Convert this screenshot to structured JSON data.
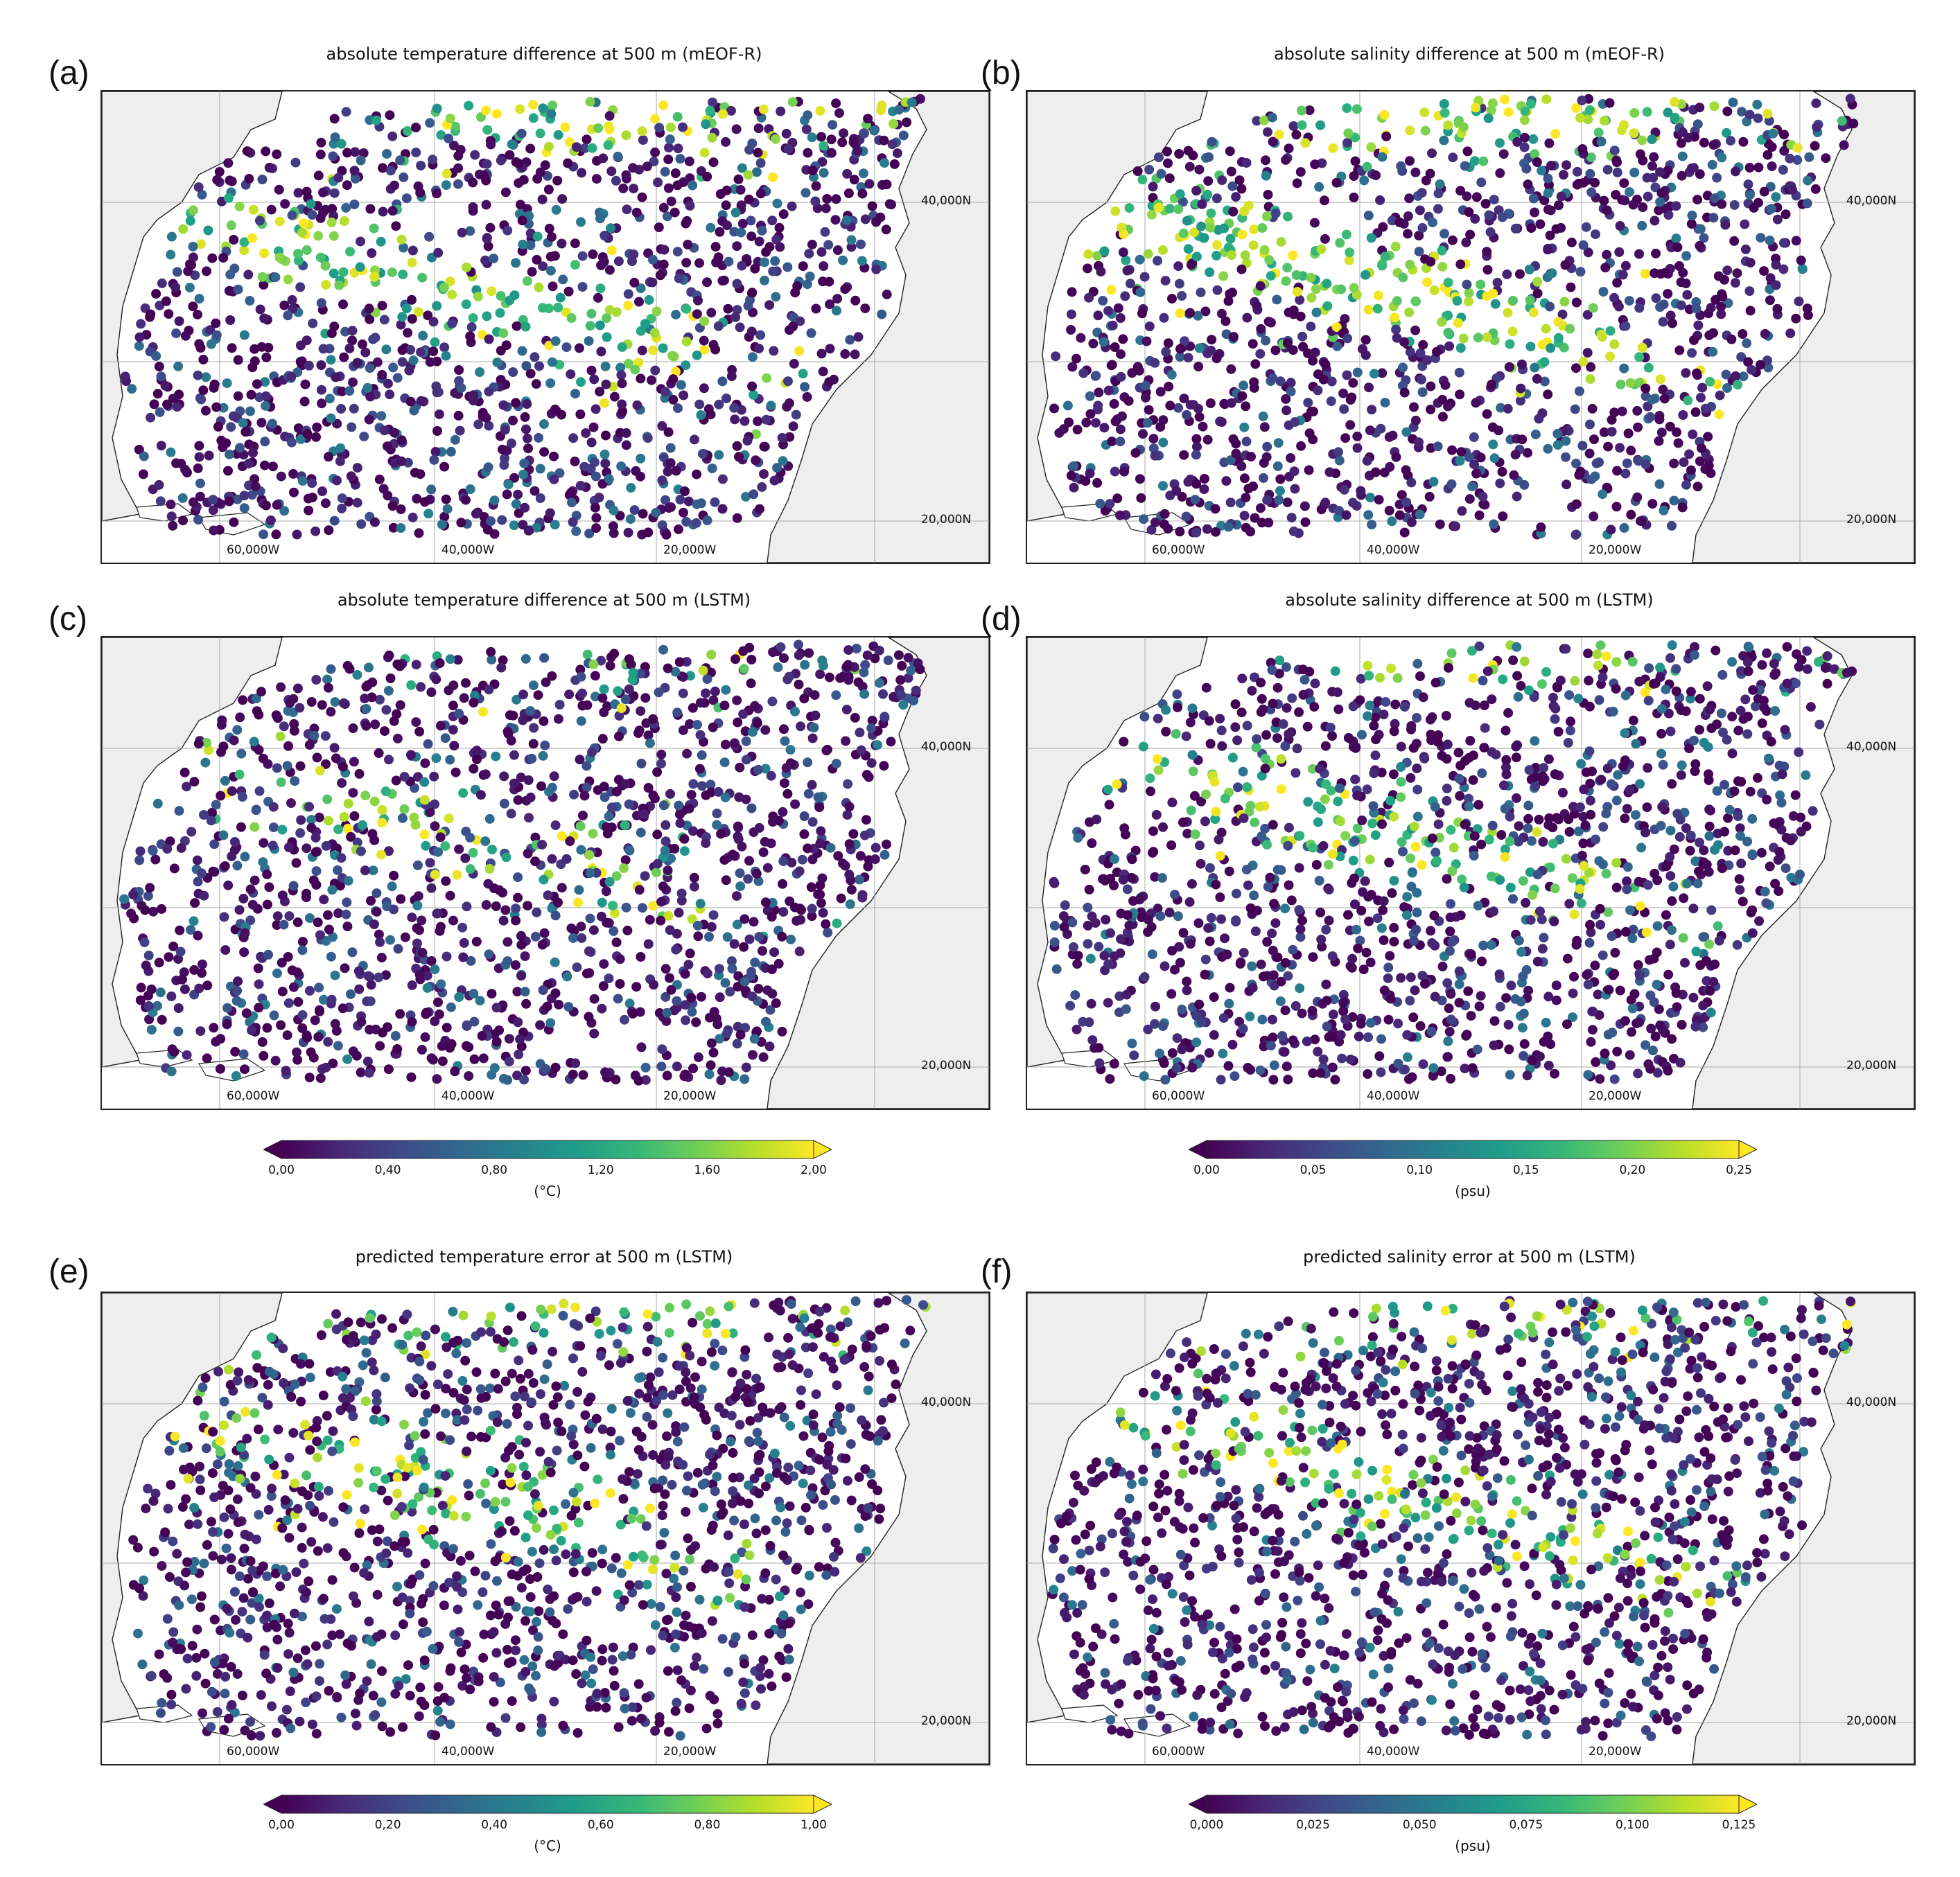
{
  "panels": [
    {
      "id": "a",
      "label": "(a)",
      "title": "absolute temperature difference at 500 m (mEOF-R)",
      "variable": "temperature",
      "scheme": "mEOF-R",
      "hot": "high"
    },
    {
      "id": "b",
      "label": "(b)",
      "title": "absolute salinity difference at 500 m (mEOF-R)",
      "variable": "salinity",
      "scheme": "mEOF-R",
      "hot": "very-high"
    },
    {
      "id": "c",
      "label": "(c)",
      "title": "absolute temperature difference at 500 m (LSTM)",
      "variable": "temperature",
      "scheme": "LSTM",
      "hot": "low"
    },
    {
      "id": "d",
      "label": "(d)",
      "title": "absolute salinity difference at 500 m (LSTM)",
      "variable": "salinity",
      "scheme": "LSTM",
      "hot": "medium"
    },
    {
      "id": "e",
      "label": "(e)",
      "title": "predicted temperature error at 500 m (LSTM)",
      "variable": "temperature",
      "scheme": "LSTM-predicted",
      "hot": "medium"
    },
    {
      "id": "f",
      "label": "(f)",
      "title": "predicted salinity error at 500 m (LSTM)",
      "variable": "salinity",
      "scheme": "LSTM-predicted",
      "hot": "medium"
    }
  ],
  "map_labels": {
    "lon": [
      "60,000W",
      "40,000W",
      "20,000W"
    ],
    "lat": [
      "40,000N",
      "20,000N"
    ]
  },
  "colorbars": [
    {
      "id": "cb1",
      "unit": "(°C)",
      "ticks": [
        "0,00",
        "0,40",
        "0,80",
        "1,20",
        "1,60",
        "2,00"
      ],
      "min": 0,
      "max": 2,
      "extend": "both"
    },
    {
      "id": "cb2",
      "unit": "(psu)",
      "ticks": [
        "0,00",
        "0,05",
        "0,10",
        "0,15",
        "0,20",
        "0,25"
      ],
      "min": 0,
      "max": 0.25,
      "extend": "both"
    },
    {
      "id": "cb3",
      "unit": "(°C)",
      "ticks": [
        "0,00",
        "0,20",
        "0,40",
        "0,60",
        "0,80",
        "1,00"
      ],
      "min": 0,
      "max": 1,
      "extend": "both"
    },
    {
      "id": "cb4",
      "unit": "(psu)",
      "ticks": [
        "0,000",
        "0,025",
        "0,050",
        "0,075",
        "0,100",
        "0,125"
      ],
      "min": 0,
      "max": 0.125,
      "extend": "both"
    }
  ],
  "colors": {
    "colormap": "viridis",
    "viridis_stops": [
      "#440154",
      "#482878",
      "#3e4a89",
      "#31688e",
      "#26828e",
      "#1f9e89",
      "#35b779",
      "#6ece58",
      "#b5de2b",
      "#fde725"
    ],
    "land": "#eeeeee",
    "coastline": "#222222",
    "grid": "#aaaaaa"
  }
}
